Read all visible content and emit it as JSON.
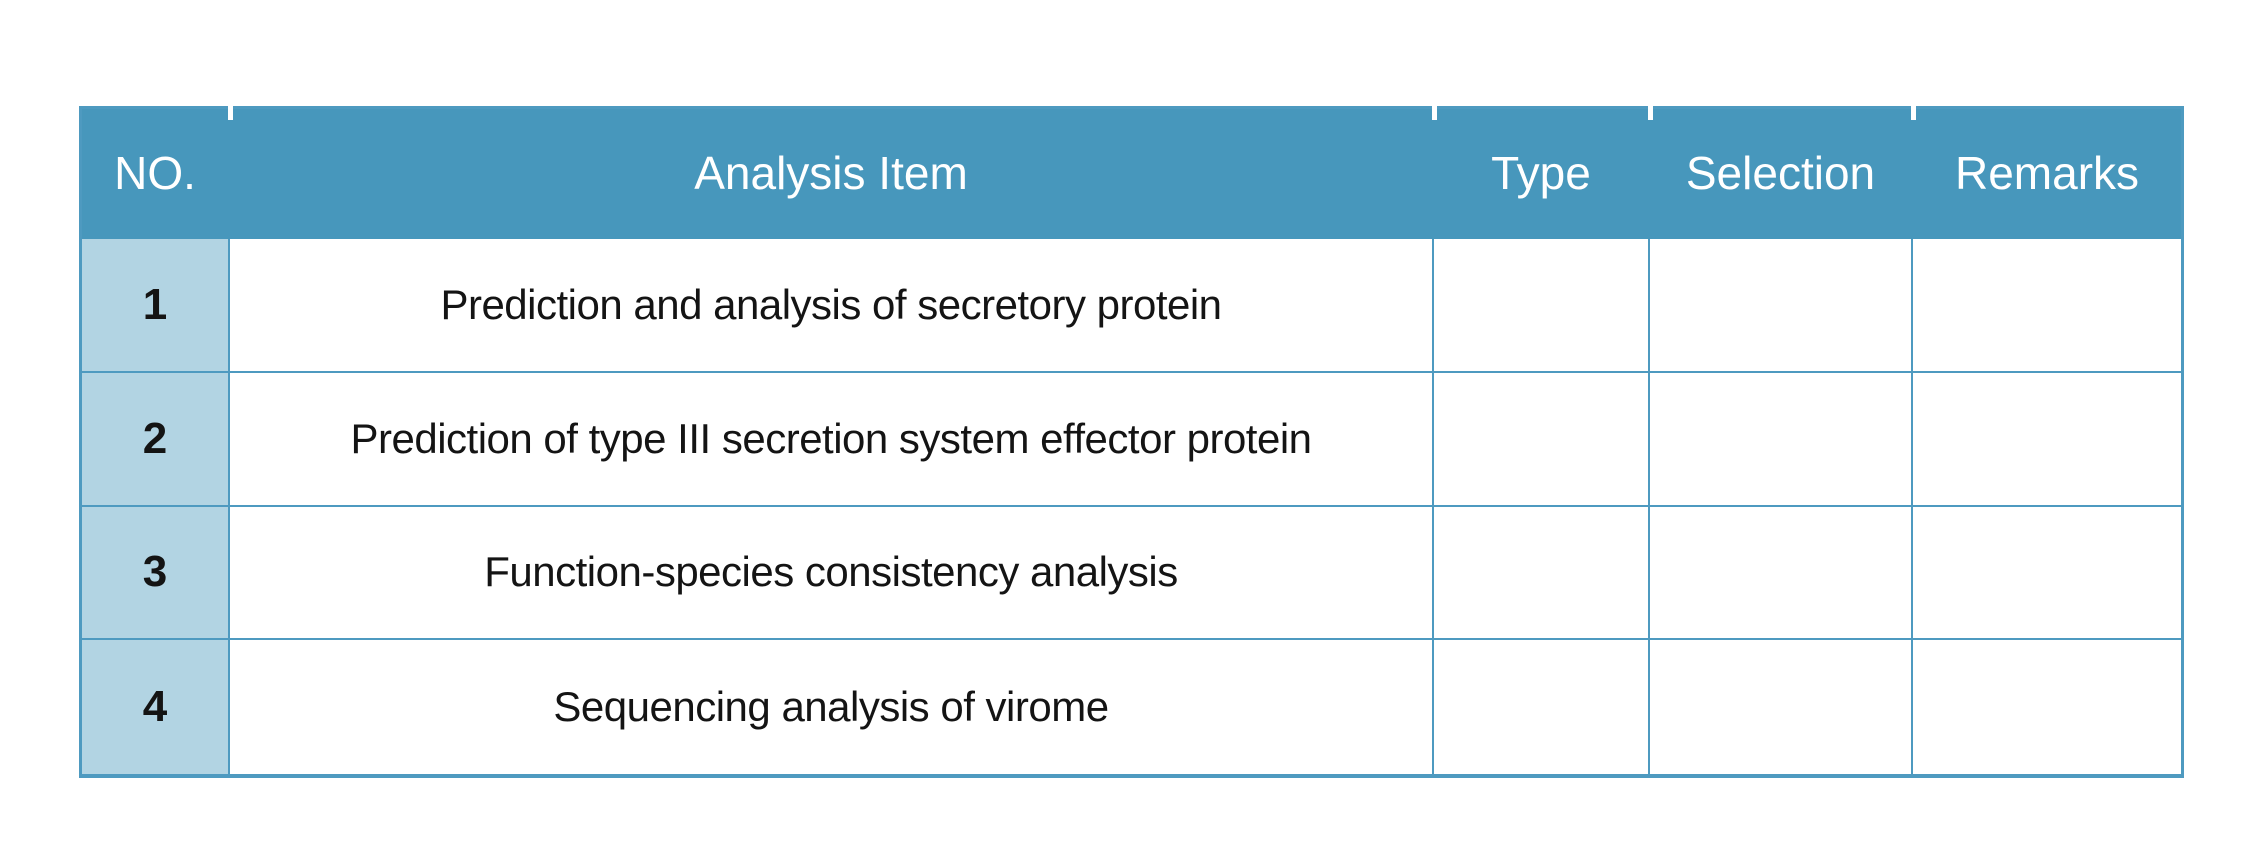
{
  "theme": {
    "page_bg": "#FFFFFF",
    "header_bg": "#4797BC",
    "number_cell_bg": "#B2D4E3",
    "grid_border": "#4E9AC0",
    "header_text": "#FFFFFF",
    "body_text": "#141414"
  },
  "table": {
    "headers": {
      "no": "NO.",
      "item": "Analysis Item",
      "type": "Type",
      "selection": "Selection",
      "remarks": "Remarks"
    },
    "rows": [
      {
        "no": "1",
        "item": "Prediction and analysis of secretory protein",
        "type": "",
        "selection": "",
        "remarks": ""
      },
      {
        "no": "2",
        "item": "Prediction of type III secretion system effector protein",
        "type": "",
        "selection": "",
        "remarks": ""
      },
      {
        "no": "3",
        "item": "Function-species consistency analysis",
        "type": "",
        "selection": "",
        "remarks": ""
      },
      {
        "no": "4",
        "item": "Sequencing analysis of virome",
        "type": "",
        "selection": "",
        "remarks": ""
      }
    ]
  }
}
